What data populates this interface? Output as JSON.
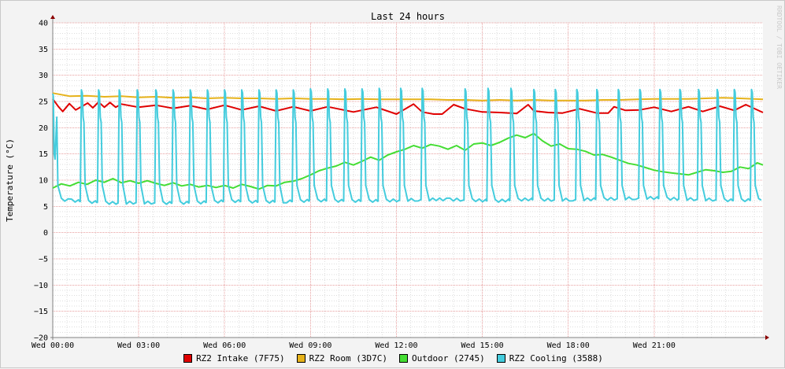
{
  "chart_data": {
    "type": "line",
    "title": "Last 24 hours",
    "ylabel": "Temperature (°C)",
    "xlabel": "",
    "watermark": "RRDTOOL / TOBI OETIKER",
    "ylim": [
      -20,
      40
    ],
    "xlim": [
      0,
      24.8
    ],
    "yticks": [
      40,
      35,
      30,
      25,
      20,
      15,
      10,
      5,
      0,
      -5,
      -10,
      -15,
      -20
    ],
    "ytick_labels": [
      "40",
      "35",
      "30",
      "25",
      "20",
      "15",
      "10",
      "5",
      "0",
      "−5",
      "−10",
      "−15",
      "−20"
    ],
    "xticks": [
      0,
      3,
      6,
      9,
      12,
      15,
      18,
      21
    ],
    "xtick_labels": [
      "Wed 00:00",
      "Wed 03:00",
      "Wed 06:00",
      "Wed 09:00",
      "Wed 12:00",
      "Wed 15:00",
      "Wed 18:00",
      "Wed 21:00"
    ],
    "grid": true,
    "legend_position": "bottom",
    "colors": {
      "background": "#f3f3f3",
      "canvas": "#ffffff",
      "minor_grid": "#dddddd",
      "major_grid": "#e8a0a0",
      "axis": "#808080",
      "arrow": "#8b0000"
    },
    "series": [
      {
        "name": "RZ2 Intake (7F75)",
        "color": "#e00000",
        "x": [
          0.0,
          0.2,
          0.35,
          0.58,
          0.8,
          1.22,
          1.4,
          1.6,
          1.8,
          2.0,
          2.2,
          2.4,
          3.0,
          3.6,
          4.2,
          4.8,
          5.4,
          6.0,
          6.6,
          7.2,
          7.8,
          8.4,
          9.0,
          9.6,
          10.5,
          11.3,
          12.0,
          12.6,
          12.9,
          13.1,
          13.3,
          13.6,
          14.0,
          14.4,
          15.0,
          15.6,
          16.2,
          16.6,
          16.8,
          17.3,
          17.8,
          18.4,
          19.0,
          19.4,
          19.6,
          20.0,
          20.5,
          21.0,
          21.6,
          22.2,
          22.7,
          23.3,
          23.8,
          24.2,
          24.8
        ],
        "values": [
          25.5,
          24.0,
          23.1,
          24.6,
          23.4,
          24.7,
          23.8,
          24.9,
          23.9,
          24.8,
          23.9,
          24.5,
          23.9,
          24.3,
          23.7,
          24.2,
          23.5,
          24.3,
          23.4,
          24.1,
          23.2,
          24.0,
          23.2,
          24.0,
          23.0,
          23.9,
          22.6,
          24.5,
          23.0,
          22.8,
          22.6,
          22.6,
          24.4,
          23.6,
          23.0,
          22.9,
          22.7,
          24.4,
          23.2,
          22.9,
          22.8,
          23.6,
          22.8,
          22.8,
          24.0,
          23.3,
          23.4,
          23.9,
          23.1,
          24.0,
          23.1,
          24.1,
          23.3,
          24.4,
          22.9
        ]
      },
      {
        "name": "RZ2 Room (3D7C)",
        "color": "#e6b21a",
        "x": [
          0.0,
          0.6,
          1.2,
          1.8,
          2.4,
          3.0,
          3.6,
          4.2,
          4.8,
          5.4,
          6.0,
          6.6,
          7.2,
          7.8,
          8.4,
          9.0,
          9.6,
          10.2,
          10.8,
          11.4,
          12.0,
          12.6,
          13.2,
          13.8,
          14.4,
          15.0,
          15.6,
          16.2,
          16.8,
          17.4,
          18.0,
          18.6,
          19.2,
          19.8,
          20.4,
          21.0,
          21.6,
          22.2,
          22.8,
          23.4,
          24.0,
          24.8
        ],
        "values": [
          26.6,
          26.0,
          26.1,
          25.9,
          26.0,
          25.8,
          25.9,
          25.7,
          25.8,
          25.6,
          25.7,
          25.6,
          25.6,
          25.5,
          25.6,
          25.5,
          25.5,
          25.4,
          25.5,
          25.4,
          25.4,
          25.4,
          25.4,
          25.3,
          25.3,
          25.2,
          25.3,
          25.2,
          25.3,
          25.2,
          25.2,
          25.2,
          25.3,
          25.3,
          25.4,
          25.5,
          25.5,
          25.5,
          25.6,
          25.7,
          25.6,
          25.4
        ]
      },
      {
        "name": "Outdoor (2745)",
        "color": "#44dd33",
        "x": [
          0.0,
          0.3,
          0.6,
          0.9,
          1.2,
          1.5,
          1.8,
          2.1,
          2.4,
          2.7,
          3.0,
          3.3,
          3.6,
          3.9,
          4.2,
          4.5,
          4.8,
          5.1,
          5.4,
          5.7,
          6.0,
          6.3,
          6.6,
          6.9,
          7.2,
          7.5,
          7.8,
          8.1,
          8.4,
          8.7,
          9.0,
          9.3,
          9.6,
          9.9,
          10.2,
          10.5,
          10.8,
          11.1,
          11.4,
          11.7,
          12.0,
          12.3,
          12.6,
          12.9,
          13.2,
          13.5,
          13.8,
          14.1,
          14.4,
          14.7,
          15.0,
          15.3,
          15.6,
          15.9,
          16.2,
          16.5,
          16.8,
          17.1,
          17.4,
          17.7,
          18.0,
          18.3,
          18.6,
          18.9,
          19.2,
          19.5,
          19.8,
          20.1,
          20.4,
          20.7,
          21.0,
          21.3,
          21.6,
          21.9,
          22.2,
          22.5,
          22.8,
          23.1,
          23.4,
          23.7,
          24.0,
          24.3,
          24.6,
          24.8
        ],
        "values": [
          8.5,
          9.3,
          8.9,
          9.6,
          9.2,
          10.0,
          9.6,
          10.3,
          9.5,
          9.9,
          9.4,
          9.9,
          9.4,
          9.0,
          9.5,
          8.9,
          9.2,
          8.7,
          9.0,
          8.6,
          9.0,
          8.5,
          9.2,
          8.8,
          8.3,
          9.0,
          8.9,
          9.6,
          9.8,
          10.3,
          11.0,
          11.8,
          12.3,
          12.7,
          13.4,
          12.9,
          13.6,
          14.4,
          13.8,
          14.8,
          15.4,
          15.9,
          16.6,
          16.1,
          16.8,
          16.5,
          15.9,
          16.6,
          15.7,
          16.9,
          17.1,
          16.6,
          17.2,
          18.0,
          18.6,
          18.1,
          18.9,
          17.5,
          16.5,
          16.9,
          16.0,
          15.9,
          15.5,
          14.8,
          14.9,
          14.4,
          13.8,
          13.2,
          12.9,
          12.4,
          11.9,
          11.6,
          11.4,
          11.2,
          11.0,
          11.5,
          12.0,
          11.8,
          11.5,
          11.7,
          12.5,
          12.2,
          13.3,
          12.9
        ]
      },
      {
        "name": "RZ2 Cooling (3588)",
        "color": "#44ccdd",
        "base": [
          6.4,
          5.9,
          5.6,
          5.7,
          5.6,
          5.7,
          6.0,
          5.8,
          5.9,
          6.1,
          6.0,
          6.0,
          6.2,
          6.3,
          6.2,
          6.0,
          6.3,
          6.2,
          6.3,
          6.4,
          6.6,
          6.4,
          6.3,
          6.1,
          6.2
        ],
        "peaks": [
          [
            0.0,
            26.5
          ],
          [
            1.0,
            27.2
          ],
          [
            1.6,
            27.2
          ],
          [
            2.32,
            27.2
          ],
          [
            2.95,
            27.2
          ],
          [
            3.6,
            27.2
          ],
          [
            4.2,
            27.2
          ],
          [
            4.8,
            27.2
          ],
          [
            5.4,
            27.2
          ],
          [
            6.0,
            27.2
          ],
          [
            6.6,
            27.2
          ],
          [
            7.2,
            27.2
          ],
          [
            7.8,
            27.2
          ],
          [
            8.4,
            27.2
          ],
          [
            9.0,
            27.4
          ],
          [
            9.6,
            27.4
          ],
          [
            10.2,
            27.4
          ],
          [
            10.8,
            27.4
          ],
          [
            11.4,
            27.5
          ],
          [
            12.15,
            27.5
          ],
          [
            12.9,
            27.5
          ],
          [
            14.4,
            27.4
          ],
          [
            15.2,
            27.5
          ],
          [
            16.0,
            27.5
          ],
          [
            16.8,
            27.3
          ],
          [
            17.55,
            27.3
          ],
          [
            18.3,
            27.3
          ],
          [
            19.0,
            27.3
          ],
          [
            19.75,
            27.3
          ],
          [
            20.5,
            27.3
          ],
          [
            21.2,
            27.3
          ],
          [
            21.9,
            27.3
          ],
          [
            22.55,
            27.3
          ],
          [
            23.2,
            27.3
          ],
          [
            23.8,
            27.3
          ],
          [
            24.4,
            27.3
          ]
        ]
      }
    ]
  }
}
